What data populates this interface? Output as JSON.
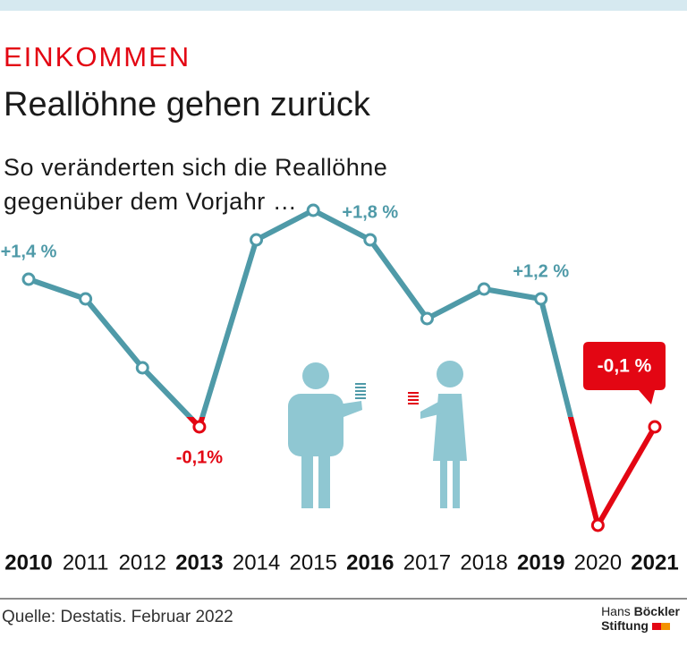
{
  "chart_data": {
    "type": "line",
    "kicker": "EINKOMMEN",
    "title": "Reallöhne gehen zurück",
    "subtitle": "So veränderten sich die Reallöhne gegenüber dem Vorjahr …",
    "categories": [
      "2010",
      "2011",
      "2012",
      "2013",
      "2014",
      "2015",
      "2016",
      "2017",
      "2018",
      "2019",
      "2020",
      "2021"
    ],
    "values": [
      1.4,
      1.2,
      0.5,
      -0.1,
      1.8,
      2.1,
      1.8,
      1.0,
      1.3,
      1.2,
      -1.1,
      -0.1
    ],
    "value_labels": [
      "+1,4 %",
      null,
      null,
      "-0,1%",
      null,
      null,
      "+1,8 %",
      null,
      null,
      "+1,2 %",
      null,
      "-0,1 %"
    ],
    "color": "#4f9aa8",
    "negative_color": "#e30613",
    "ylim": [
      -1.3,
      2.3
    ],
    "source": "Quelle: Destatis. Februar 2022",
    "logo": {
      "line1": "Hans",
      "line1_bold": "Böckler",
      "line2": "Stiftung"
    }
  }
}
